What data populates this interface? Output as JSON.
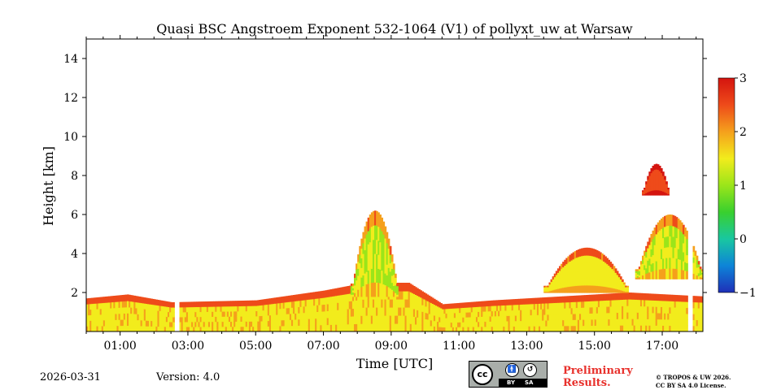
{
  "chart_data": {
    "type": "heatmap",
    "title": "Quasi BSC Angstroem Exponent 532-1064 (V1) of pollyxt_uw at Warsaw",
    "xlabel": "Time [UTC]",
    "ylabel": "Height [km]",
    "xlim_hours": [
      0,
      18.2
    ],
    "ylim_km": [
      0,
      15
    ],
    "x_ticks": [
      {
        "value": 1,
        "label": "01:00"
      },
      {
        "value": 3,
        "label": "03:00"
      },
      {
        "value": 5,
        "label": "05:00"
      },
      {
        "value": 7,
        "label": "07:00"
      },
      {
        "value": 9,
        "label": "09:00"
      },
      {
        "value": 11,
        "label": "11:00"
      },
      {
        "value": 13,
        "label": "13:00"
      },
      {
        "value": 15,
        "label": "15:00"
      },
      {
        "value": 17,
        "label": "17:00"
      }
    ],
    "y_ticks": [
      {
        "value": 2,
        "label": "2"
      },
      {
        "value": 4,
        "label": "4"
      },
      {
        "value": 6,
        "label": "6"
      },
      {
        "value": 8,
        "label": "8"
      },
      {
        "value": 10,
        "label": "10"
      },
      {
        "value": 12,
        "label": "12"
      },
      {
        "value": 14,
        "label": "14"
      }
    ],
    "colorbar": {
      "min": -1,
      "max": 3,
      "ticks": [
        {
          "value": -1,
          "label": "−1"
        },
        {
          "value": 0,
          "label": "0"
        },
        {
          "value": 1,
          "label": "1"
        },
        {
          "value": 2,
          "label": "2"
        },
        {
          "value": 3,
          "label": "3"
        }
      ],
      "colors": [
        "#1f2fb8",
        "#0d84d8",
        "#19c7a0",
        "#39d02e",
        "#9be51a",
        "#f2ec1c",
        "#f5a01c",
        "#ee4b1a",
        "#d4140f"
      ]
    },
    "data_gaps_hours": [
      [
        2.55,
        2.7
      ],
      [
        17.75,
        17.9
      ]
    ],
    "features": [
      {
        "name": "boundary-layer",
        "t_start": 0,
        "t_end": 18.2,
        "top_km": [
          [
            0,
            1.7
          ],
          [
            1.2,
            1.9
          ],
          [
            2.5,
            1.5
          ],
          [
            5,
            1.6
          ],
          [
            7,
            2.1
          ],
          [
            8.2,
            2.5
          ],
          [
            9.5,
            2.5
          ],
          [
            10.5,
            1.4
          ],
          [
            12,
            1.6
          ],
          [
            14,
            1.8
          ],
          [
            16,
            2.0
          ],
          [
            18.2,
            1.8
          ]
        ],
        "value_mean": 1.6
      },
      {
        "name": "aerosol-plume",
        "t_start": 7.8,
        "t_end": 9.2,
        "base_km": 1.8,
        "top_km": 6.2,
        "value_mean": 1.2
      },
      {
        "name": "lofted-layers",
        "t_start": 13.5,
        "t_end": 16.0,
        "base_km": 2.0,
        "top_km": 4.3,
        "value_mean": 1.5
      },
      {
        "name": "cirrus-cloud",
        "t_start": 16.4,
        "t_end": 17.2,
        "base_km": 7.0,
        "top_km": 8.6,
        "value_mean": 2.5
      },
      {
        "name": "mid-level-layer",
        "t_start": 16.2,
        "t_end": 18.2,
        "base_km": 2.7,
        "top_km": 6.0,
        "value_mean": 1.3
      }
    ]
  },
  "footer": {
    "date": "2026-03-31",
    "version": "Version: 4.0",
    "license_badge": {
      "cc": "cc",
      "by": "BY",
      "sa": "SA"
    },
    "preliminary_line1": "Preliminary",
    "preliminary_line2": "Results.",
    "copyright_line1": "© TROPOS & UW 2026.",
    "copyright_line2": "CC BY SA 4.0 License."
  }
}
